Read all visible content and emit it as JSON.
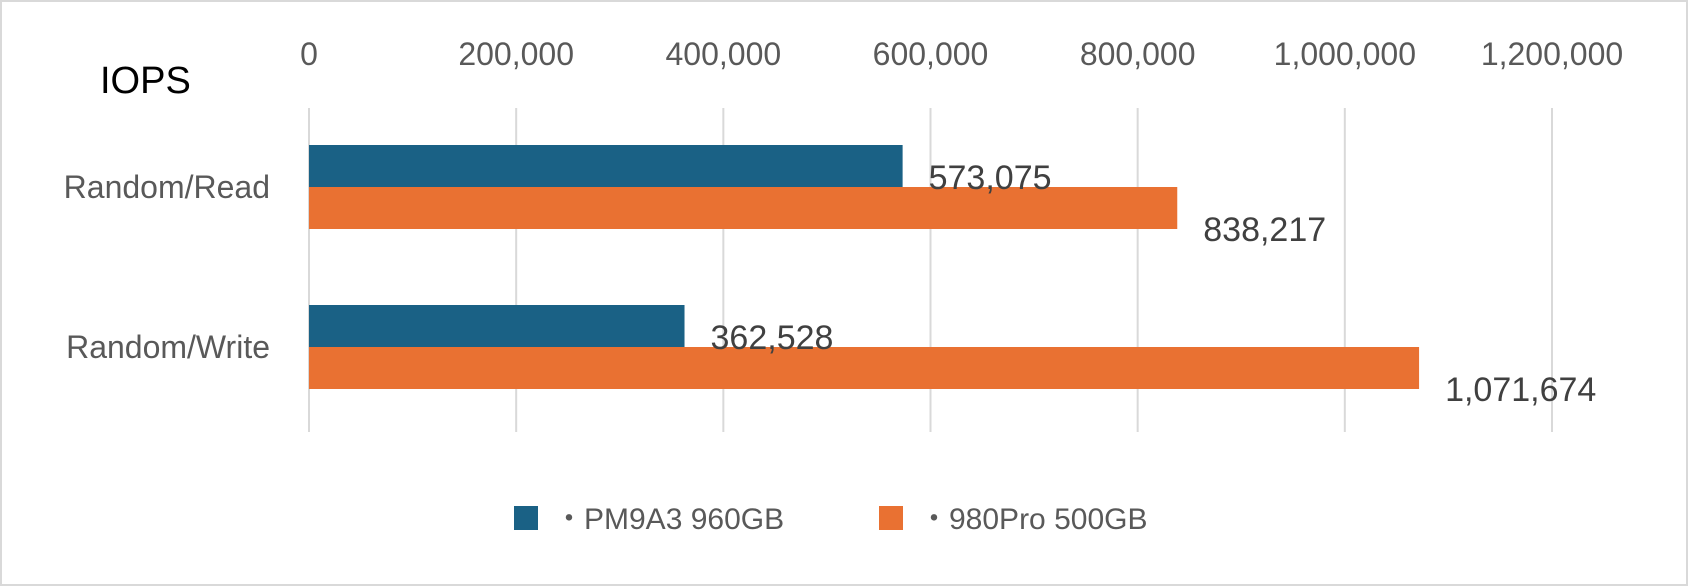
{
  "chart_data": {
    "type": "bar",
    "orientation": "horizontal",
    "title": "IOPS",
    "categories": [
      "Random/Read",
      "Random/Write"
    ],
    "series": [
      {
        "name": "・PM9A3 960GB",
        "values": [
          573075,
          362528
        ],
        "color": "#1a6185"
      },
      {
        "name": "・980Pro 500GB",
        "values": [
          838217,
          1071674
        ],
        "color": "#e97132"
      }
    ],
    "data_labels": [
      [
        "573,075",
        "362,528"
      ],
      [
        "838,217",
        "1,071,674"
      ]
    ],
    "xlim": [
      0,
      1200000
    ],
    "x_ticks": [
      0,
      200000,
      400000,
      600000,
      800000,
      1000000,
      1200000
    ],
    "x_tick_labels": [
      "0",
      "200,000",
      "400,000",
      "600,000",
      "800,000",
      "1,000,000",
      "1,200,000"
    ],
    "x_axis_position": "top",
    "grid": true,
    "legend_position": "bottom"
  }
}
